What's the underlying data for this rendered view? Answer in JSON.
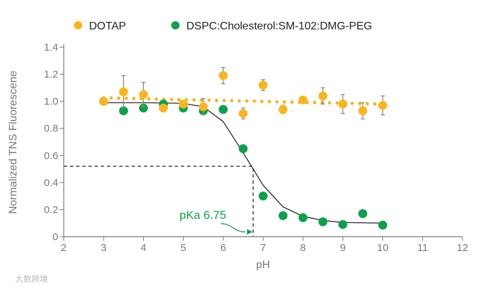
{
  "chart_data": {
    "type": "scatter",
    "title": "",
    "xlabel": "pH",
    "ylabel": "Normalized TNS Fluorescene",
    "xlim": [
      2,
      12
    ],
    "ylim": [
      0,
      1.4
    ],
    "xticks": [
      "2",
      "3",
      "4",
      "5",
      "6",
      "7",
      "8",
      "9",
      "10",
      "11",
      "12"
    ],
    "yticks": [
      "0",
      "0.2",
      "0.4",
      "0.6",
      "0.8",
      "1.0",
      "1.2",
      "1.4"
    ],
    "legend_position": "top",
    "series": [
      {
        "name": "DOTAP",
        "color": "#F9B520",
        "x": [
          3,
          3.5,
          4,
          4.5,
          5,
          5.5,
          6,
          6.5,
          7,
          7.5,
          8,
          8.5,
          9,
          9.5,
          10
        ],
        "y": [
          1.0,
          1.07,
          1.05,
          0.95,
          0.98,
          0.96,
          1.19,
          0.91,
          1.12,
          0.94,
          1.01,
          1.04,
          0.98,
          0.93,
          0.97
        ],
        "error": [
          0.02,
          0.12,
          0.09,
          0.0,
          0.02,
          0.06,
          0.06,
          0.04,
          0.04,
          0.03,
          0.01,
          0.06,
          0.07,
          0.06,
          0.07
        ],
        "trend": {
          "style": "dotted",
          "x": [
            3,
            10
          ],
          "y": [
            1.025,
            0.98
          ]
        }
      },
      {
        "name": "DSPC:Cholesterol:SM-102:DMG-PEG",
        "color": "#0CA04A",
        "x": [
          3,
          3.5,
          4,
          4.5,
          5,
          5.5,
          6,
          6.5,
          7,
          7.5,
          8,
          8.5,
          9,
          9.5,
          10
        ],
        "y": [
          1.0,
          0.93,
          0.95,
          0.98,
          0.95,
          0.93,
          0.94,
          0.65,
          0.3,
          0.155,
          0.14,
          0.11,
          0.09,
          0.17,
          0.085
        ],
        "fit": {
          "x": [
            3,
            4,
            5,
            5.5,
            6,
            6.5,
            7,
            7.5,
            8,
            8.5,
            9,
            10
          ],
          "y": [
            0.99,
            0.99,
            0.985,
            0.96,
            0.85,
            0.62,
            0.38,
            0.22,
            0.15,
            0.12,
            0.105,
            0.1
          ]
        }
      }
    ],
    "annotation": {
      "text": "pKa 6.75",
      "x": 6.75,
      "y": 0.52,
      "color": "#0CA04A"
    }
  },
  "watermark": "大数跨境"
}
